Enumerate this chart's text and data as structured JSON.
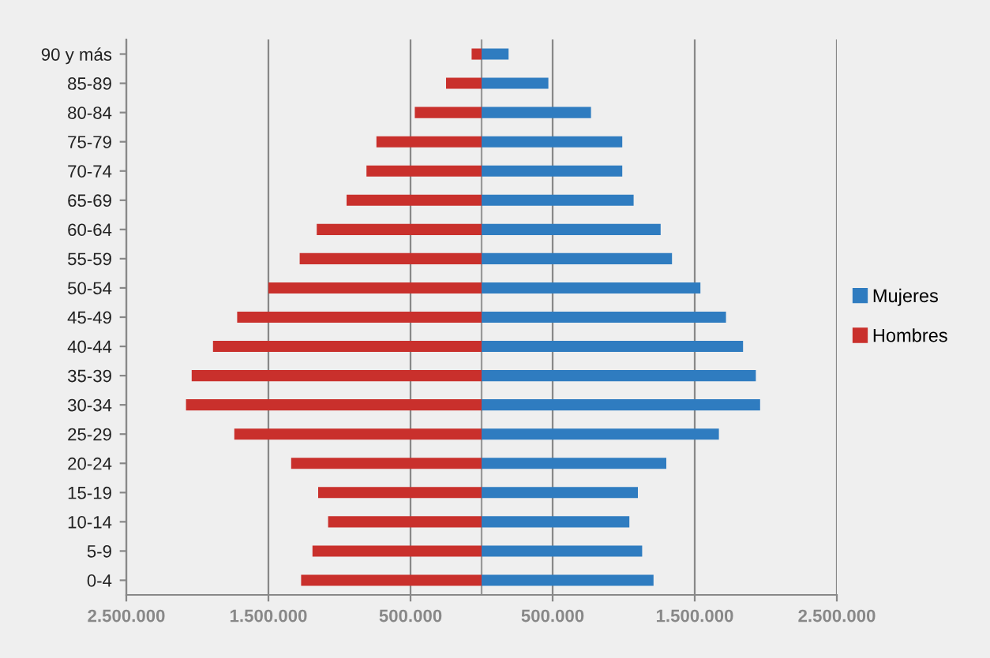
{
  "chart_data": {
    "type": "bar",
    "orientation": "horizontal",
    "stacked": true,
    "categories": [
      "90 y más",
      "85-89",
      "80-84",
      "75-79",
      "70-74",
      "65-69",
      "60-64",
      "55-59",
      "50-54",
      "45-49",
      "40-44",
      "35-39",
      "30-34",
      "25-29",
      "20-24",
      "15-19",
      "10-14",
      "5-9",
      "0-4"
    ],
    "series": [
      {
        "name": "Mujeres",
        "color": "#2f7cc0",
        "values": [
          190000,
          470000,
          770000,
          990000,
          990000,
          1070000,
          1260000,
          1340000,
          1540000,
          1720000,
          1840000,
          1930000,
          1960000,
          1670000,
          1300000,
          1100000,
          1040000,
          1130000,
          1210000
        ]
      },
      {
        "name": "Hombres",
        "color": "#c9302c",
        "values": [
          -70000,
          -250000,
          -470000,
          -740000,
          -810000,
          -950000,
          -1160000,
          -1280000,
          -1500000,
          -1720000,
          -1890000,
          -2040000,
          -2080000,
          -1740000,
          -1340000,
          -1150000,
          -1080000,
          -1190000,
          -1270000
        ]
      }
    ],
    "xlim": [
      -2500000,
      2500000
    ],
    "xticks": [
      {
        "value": -2500000,
        "label": "2.500.000"
      },
      {
        "value": -1500000,
        "label": "1.500.000"
      },
      {
        "value": -500000,
        "label": "500.000"
      },
      {
        "value": 500000,
        "label": "500.000"
      },
      {
        "value": 1500000,
        "label": "1.500.000"
      },
      {
        "value": 2500000,
        "label": "2.500.000"
      }
    ],
    "grid": "x",
    "legend": "right"
  }
}
